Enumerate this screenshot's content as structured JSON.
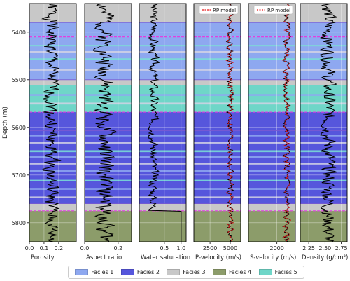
{
  "chart_data": {
    "type": "line",
    "depth_axis": {
      "label": "Depth (m)",
      "range": [
        5340,
        5840
      ],
      "ticks": [
        5400,
        5500,
        5600,
        5700,
        5800
      ],
      "inverted": true
    },
    "panels": [
      {
        "xlabel": "Porosity",
        "xlim": [
          0,
          0.32
        ],
        "ticks": [
          0.0,
          0.1,
          0.2
        ],
        "tick_labels": [
          "0.0",
          "0.1",
          "0.2"
        ],
        "base": 0.15,
        "amp": 0.045,
        "seed": 1,
        "series": [
          {
            "color": "#000000"
          }
        ]
      },
      {
        "xlabel": "Aspect ratio",
        "xlim": [
          0,
          0.28
        ],
        "ticks": [
          0.0,
          0.2
        ],
        "tick_labels": [
          "0.0",
          "0.2"
        ],
        "base": 0.12,
        "amp": 0.05,
        "seed": 2,
        "series": [
          {
            "color": "#000000"
          }
        ]
      },
      {
        "xlabel": "Water saturation",
        "xlim": [
          -0.25,
          1.15
        ],
        "ticks": [
          0.5,
          1.0
        ],
        "tick_labels": [
          "0.5",
          "1.0"
        ],
        "base": 0.18,
        "amp": 0.12,
        "seed": 3,
        "water": true,
        "series": [
          {
            "color": "#000000"
          }
        ]
      },
      {
        "xlabel": "P-velocity (m/s)",
        "xlim": [
          500,
          6300
        ],
        "ticks": [
          2500,
          5000
        ],
        "tick_labels": [
          "2500",
          "5000"
        ],
        "base": 5000,
        "amp": 350,
        "seed": 4,
        "series": [
          {
            "color": "#000000"
          },
          {
            "name": "RP model",
            "color": "#e8191b",
            "dashed": true
          }
        ],
        "legend": {
          "label": "RP model",
          "position": "top-right"
        }
      },
      {
        "xlabel": "S-velocity (m/s)",
        "xlim": [
          300,
          3100
        ],
        "ticks": [
          2000
        ],
        "tick_labels": [
          "2000"
        ],
        "base": 2580,
        "amp": 190,
        "seed": 5,
        "series": [
          {
            "color": "#000000"
          },
          {
            "name": "RP model",
            "color": "#e8191b",
            "dashed": true
          }
        ],
        "legend": {
          "label": "RP model",
          "position": "top-right"
        }
      },
      {
        "xlabel": "Density (g/cm³)",
        "xlim": [
          2.12,
          2.84
        ],
        "ticks": [
          2.25,
          2.5,
          2.75
        ],
        "tick_labels": [
          "2.25",
          "2.50",
          "2.75"
        ],
        "base": 2.55,
        "amp": 0.1,
        "seed": 6,
        "series": [
          {
            "color": "#000000"
          }
        ]
      }
    ],
    "facies_intervals": [
      {
        "from": 5340,
        "to": 5380,
        "facies": 3
      },
      {
        "from": 5380,
        "to": 5410,
        "facies": 1
      },
      {
        "from": 5410,
        "to": 5500,
        "facies": 1
      },
      {
        "from": 5500,
        "to": 5512,
        "facies": 3
      },
      {
        "from": 5512,
        "to": 5568,
        "facies": 5
      },
      {
        "from": 5568,
        "to": 5607,
        "facies": 2
      },
      {
        "from": 5607,
        "to": 5760,
        "facies": 2
      },
      {
        "from": 5760,
        "to": 5775,
        "facies": 3
      },
      {
        "from": 5775,
        "to": 5840,
        "facies": 4
      }
    ],
    "stripes": [
      {
        "from": 5427,
        "to": 5430,
        "color": "#7ae0d5"
      },
      {
        "from": 5440,
        "to": 5443,
        "color": "#d2d2e4"
      },
      {
        "from": 5455,
        "to": 5458,
        "color": "#7ae0d5"
      },
      {
        "from": 5478,
        "to": 5481,
        "color": "#d2d2e4"
      },
      {
        "from": 5530,
        "to": 5534,
        "color": "#8ea8f0"
      },
      {
        "from": 5548,
        "to": 5552,
        "color": "#d2d2e4"
      },
      {
        "from": 5616,
        "to": 5619,
        "color": "#8ea8f0"
      },
      {
        "from": 5630,
        "to": 5634,
        "color": "#d2d2e4"
      },
      {
        "from": 5648,
        "to": 5652,
        "color": "#7ae0d5"
      },
      {
        "from": 5660,
        "to": 5664,
        "color": "#8ea8f0"
      },
      {
        "from": 5675,
        "to": 5678,
        "color": "#d2d2e4"
      },
      {
        "from": 5690,
        "to": 5694,
        "color": "#8ea8f0"
      },
      {
        "from": 5710,
        "to": 5713,
        "color": "#7ae0d5"
      },
      {
        "from": 5727,
        "to": 5731,
        "color": "#8ea8f0"
      },
      {
        "from": 5745,
        "to": 5748,
        "color": "#d2d2e4"
      }
    ],
    "hlines": [
      {
        "depth": 5380,
        "color": "#7a5ad0",
        "style": "solid"
      },
      {
        "depth": 5410,
        "color": "#e040e0",
        "style": "dashed"
      },
      {
        "depth": 5500,
        "color": "#7a5ad0",
        "style": "solid"
      },
      {
        "depth": 5568,
        "color": "#e040e0",
        "style": "dashed"
      },
      {
        "depth": 5607,
        "color": "#7a5ad0",
        "style": "solid"
      },
      {
        "depth": 5760,
        "color": "#7a5ad0",
        "style": "solid"
      },
      {
        "depth": 5775,
        "color": "#e040e0",
        "style": "dashed"
      }
    ],
    "grid": true,
    "legend": {
      "position": "bottom",
      "items": [
        {
          "label": "Facies 1",
          "color": "#8ea8f0"
        },
        {
          "label": "Facies 2",
          "color": "#5656dc"
        },
        {
          "label": "Facies 3",
          "color": "#c8c8c8"
        },
        {
          "label": "Facies 4",
          "color": "#8c9c6a"
        },
        {
          "label": "Facies 5",
          "color": "#6fd6c8"
        }
      ]
    }
  }
}
